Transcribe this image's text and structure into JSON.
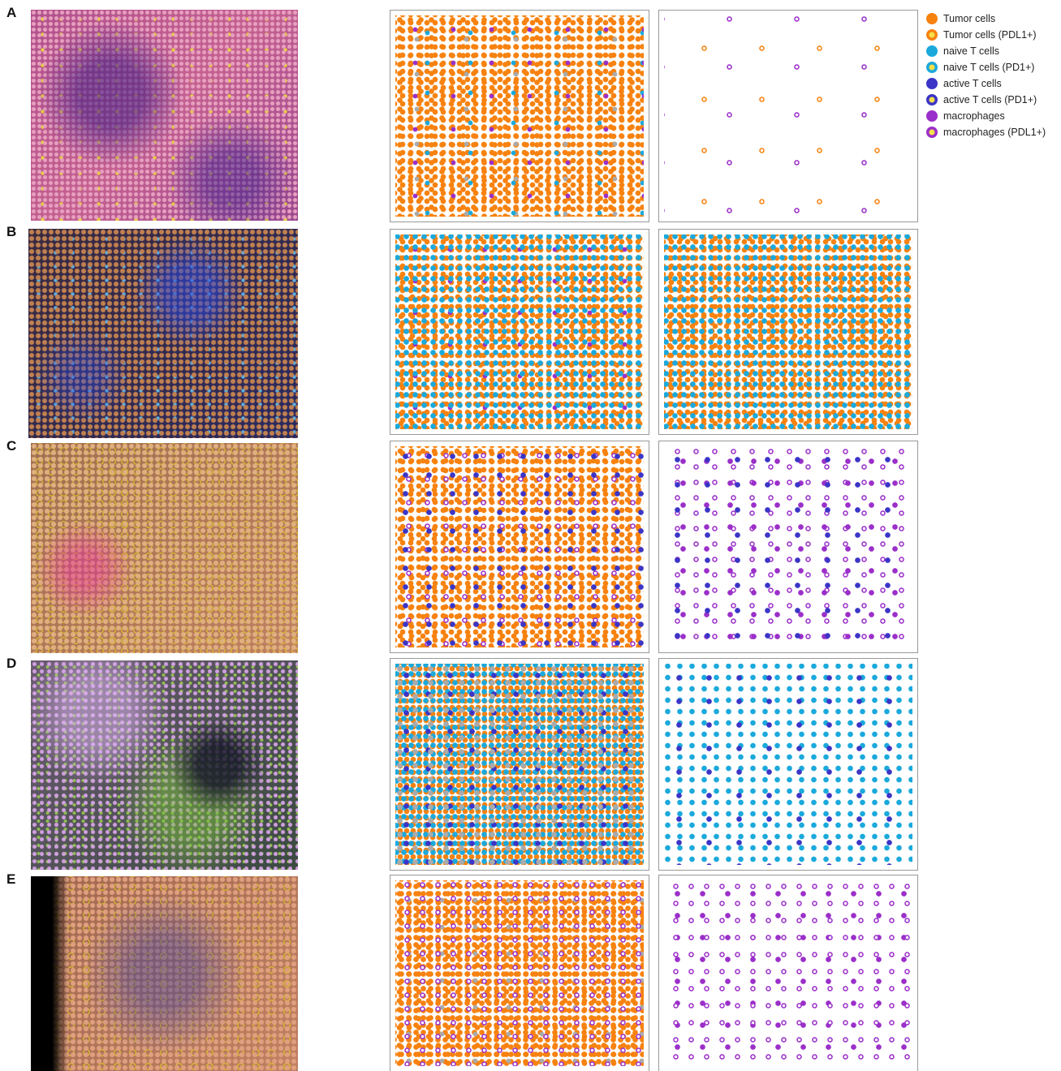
{
  "panels": [
    {
      "label": "A"
    },
    {
      "label": "B"
    },
    {
      "label": "C"
    },
    {
      "label": "D"
    },
    {
      "label": "E"
    }
  ],
  "legend": [
    {
      "label": "Tumor cells",
      "color": "#f7820f",
      "style": "filled"
    },
    {
      "label": "Tumor cells (PDL1+)",
      "color": "#f7820f",
      "style": "ring"
    },
    {
      "label": "naive T cells",
      "color": "#1ba9dc",
      "style": "filled"
    },
    {
      "label": "naive T cells (PD1+)",
      "color": "#1ba9dc",
      "style": "ring"
    },
    {
      "label": "active T cells",
      "color": "#3b35c7",
      "style": "filled"
    },
    {
      "label": "active T cells (PD1+)",
      "color": "#3b35c7",
      "style": "ring"
    },
    {
      "label": "macrophages",
      "color": "#9b2fc9",
      "style": "filled"
    },
    {
      "label": "macrophages (PDL1+)",
      "color": "#9b2fc9",
      "style": "ring"
    }
  ]
}
